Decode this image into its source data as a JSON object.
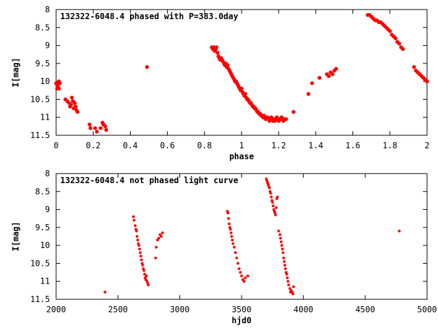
{
  "chart_data": [
    {
      "type": "scatter",
      "title": "132322-6048.4 phased with P=383.0day",
      "xlabel": "phase",
      "ylabel": "I[mag]",
      "xlim": [
        0,
        2
      ],
      "ylim": [
        8,
        11.5
      ],
      "y_inverted": true,
      "grid": false,
      "x_ticks": [
        0,
        0.2,
        0.4,
        0.6,
        0.8,
        1,
        1.2,
        1.4,
        1.6,
        1.8,
        2
      ],
      "x_tick_labels": [
        "0",
        "0.2",
        "0.4",
        "0.6",
        "0.8",
        "1",
        "1.2",
        "1.4",
        "1.6",
        "1.8",
        "2"
      ],
      "y_ticks": [
        8,
        8.5,
        9,
        9.5,
        10,
        10.5,
        11,
        11.5
      ],
      "y_tick_labels": [
        "8",
        "8.5",
        "9",
        "9.5",
        "10",
        "10.5",
        "11",
        "11.5"
      ],
      "marker_color": "#ff0000",
      "marker": "filled-circle",
      "series": [
        {
          "x": [
            0.0,
            0.005,
            0.01,
            0.015,
            0.02,
            0.005,
            0.015,
            0.05,
            0.06,
            0.07,
            0.08,
            0.075,
            0.085,
            0.09,
            0.095,
            0.1,
            0.105,
            0.11,
            0.115,
            0.18,
            0.185,
            0.21,
            0.22,
            0.24,
            0.25,
            0.255,
            0.265,
            0.27,
            0.49,
            0.84,
            0.845,
            0.85,
            0.855,
            0.86,
            0.865,
            0.87,
            0.875,
            0.88,
            0.885,
            0.89,
            0.895,
            0.9,
            0.905,
            0.91,
            0.915,
            0.92,
            0.925,
            0.93,
            0.935,
            0.94,
            0.945,
            0.95,
            0.955,
            0.96,
            0.965,
            0.97,
            0.975,
            0.98,
            0.985,
            0.99,
            0.995,
            1.0,
            1.005,
            1.01,
            1.015,
            1.02,
            1.025,
            1.03,
            1.035,
            1.04,
            1.045,
            1.05,
            1.055,
            1.06,
            1.065,
            1.07,
            1.075,
            1.08,
            1.085,
            1.09,
            1.095,
            1.1,
            1.105,
            1.11,
            1.115,
            1.12,
            1.125,
            1.13,
            1.135,
            1.14,
            1.145,
            1.15,
            1.155,
            1.16,
            1.165,
            1.17,
            1.175,
            1.18,
            1.185,
            1.19,
            1.195,
            1.2,
            1.205,
            1.21,
            1.215,
            1.22,
            1.225,
            1.23,
            1.24,
            1.28,
            1.36,
            1.38,
            1.42,
            1.46,
            1.47,
            1.48,
            1.49,
            1.5,
            1.51,
            1.68,
            1.69,
            1.7,
            1.71,
            1.72,
            1.73,
            1.74,
            1.75,
            1.76,
            1.77,
            1.78,
            1.79,
            1.8,
            1.81,
            1.82,
            1.83,
            1.84,
            1.85,
            1.86,
            1.87,
            1.93,
            1.94,
            1.95,
            1.96,
            1.97,
            1.98,
            1.99,
            2.0
          ],
          "y": [
            10.05,
            10.1,
            10.15,
            10.0,
            10.05,
            10.2,
            10.2,
            10.5,
            10.55,
            10.6,
            10.65,
            10.7,
            10.45,
            10.55,
            10.75,
            10.6,
            10.7,
            10.8,
            10.85,
            11.2,
            11.3,
            11.3,
            11.4,
            11.3,
            11.15,
            11.2,
            11.25,
            11.35,
            9.6,
            9.05,
            9.1,
            9.05,
            9.15,
            9.1,
            9.05,
            9.2,
            9.3,
            9.35,
            9.4,
            9.35,
            9.4,
            9.45,
            9.5,
            9.55,
            9.5,
            9.6,
            9.55,
            9.65,
            9.7,
            9.75,
            9.8,
            9.85,
            9.9,
            9.95,
            10.0,
            10.0,
            10.05,
            10.1,
            10.15,
            10.2,
            10.25,
            10.2,
            10.3,
            10.35,
            10.4,
            10.35,
            10.45,
            10.5,
            10.5,
            10.55,
            10.6,
            10.6,
            10.65,
            10.7,
            10.7,
            10.75,
            10.75,
            10.8,
            10.85,
            10.85,
            10.9,
            10.9,
            10.95,
            10.95,
            11.0,
            10.95,
            11.0,
            11.05,
            11.0,
            11.0,
            11.05,
            11.1,
            11.05,
            11.0,
            11.05,
            11.1,
            11.05,
            11.1,
            11.05,
            11.0,
            11.05,
            11.1,
            11.05,
            11.05,
            11.0,
            11.05,
            11.1,
            11.05,
            11.05,
            10.85,
            10.35,
            10.05,
            9.9,
            9.8,
            9.85,
            9.75,
            9.8,
            9.7,
            9.65,
            8.15,
            8.15,
            8.2,
            8.25,
            8.3,
            8.3,
            8.35,
            8.35,
            8.4,
            8.45,
            8.5,
            8.55,
            8.6,
            8.7,
            8.75,
            8.8,
            8.9,
            8.95,
            9.05,
            9.1,
            9.6,
            9.7,
            9.75,
            9.8,
            9.85,
            9.9,
            9.95,
            10.0
          ]
        }
      ]
    },
    {
      "type": "scatter",
      "title": "132322-6048.4 not phased light curve",
      "xlabel": "hjd0",
      "ylabel": "I[mag]",
      "xlim": [
        2000,
        5000
      ],
      "ylim": [
        8,
        11.5
      ],
      "y_inverted": true,
      "grid": false,
      "x_ticks": [
        2000,
        2500,
        3000,
        3500,
        4000,
        4500,
        5000
      ],
      "x_tick_labels": [
        "2000",
        "2500",
        "3000",
        "3500",
        "4000",
        "4500",
        "5000"
      ],
      "y_ticks": [
        8,
        8.5,
        9,
        9.5,
        10,
        10.5,
        11,
        11.5
      ],
      "y_tick_labels": [
        "8",
        "8.5",
        "9",
        "9.5",
        "10",
        "10.5",
        "11",
        "11.5"
      ],
      "marker_color": "#ff0000",
      "marker": "filled-circle",
      "series": [
        {
          "x": [
            2395,
            2625,
            2630,
            2640,
            2645,
            2650,
            2655,
            2660,
            2665,
            2670,
            2675,
            2680,
            2685,
            2690,
            2695,
            2700,
            2705,
            2710,
            2715,
            2720,
            2725,
            2730,
            2735,
            2740,
            2745,
            2805,
            2810,
            2820,
            2830,
            2840,
            2850,
            2860,
            3385,
            3390,
            3395,
            3400,
            3405,
            3410,
            3415,
            3420,
            3425,
            3430,
            3440,
            3450,
            3460,
            3470,
            3480,
            3490,
            3500,
            3510,
            3520,
            3530,
            3550,
            3700,
            3705,
            3710,
            3715,
            3720,
            3725,
            3730,
            3735,
            3740,
            3745,
            3750,
            3755,
            3760,
            3765,
            3770,
            3775,
            3780,
            3785,
            3790,
            3800,
            3810,
            3815,
            3820,
            3825,
            3830,
            3835,
            3840,
            3845,
            3850,
            3855,
            3860,
            3865,
            3870,
            3875,
            3880,
            3890,
            3895,
            3900,
            3910,
            3915,
            3920,
            4775
          ],
          "y": [
            11.3,
            9.2,
            9.3,
            9.45,
            9.55,
            9.6,
            9.75,
            9.85,
            9.95,
            10.0,
            10.1,
            10.2,
            10.3,
            10.4,
            10.5,
            10.55,
            10.65,
            10.7,
            10.8,
            10.9,
            10.95,
            10.85,
            11.0,
            11.05,
            11.1,
            10.35,
            10.05,
            9.85,
            9.8,
            9.7,
            9.75,
            9.65,
            9.05,
            9.1,
            9.25,
            9.4,
            9.5,
            9.55,
            9.65,
            9.75,
            9.85,
            9.95,
            10.05,
            10.2,
            10.35,
            10.5,
            10.65,
            10.75,
            10.85,
            10.95,
            11.0,
            10.9,
            10.85,
            8.15,
            8.2,
            8.25,
            8.3,
            8.35,
            8.4,
            8.5,
            8.55,
            8.65,
            8.75,
            8.8,
            8.9,
            9.0,
            9.05,
            9.1,
            9.15,
            8.95,
            8.7,
            8.65,
            9.6,
            9.7,
            9.8,
            9.9,
            10.0,
            10.1,
            10.2,
            10.35,
            10.45,
            10.55,
            10.65,
            10.75,
            10.8,
            10.9,
            11.0,
            11.1,
            11.2,
            11.3,
            11.25,
            11.3,
            11.35,
            11.15,
            9.6
          ]
        }
      ]
    }
  ]
}
